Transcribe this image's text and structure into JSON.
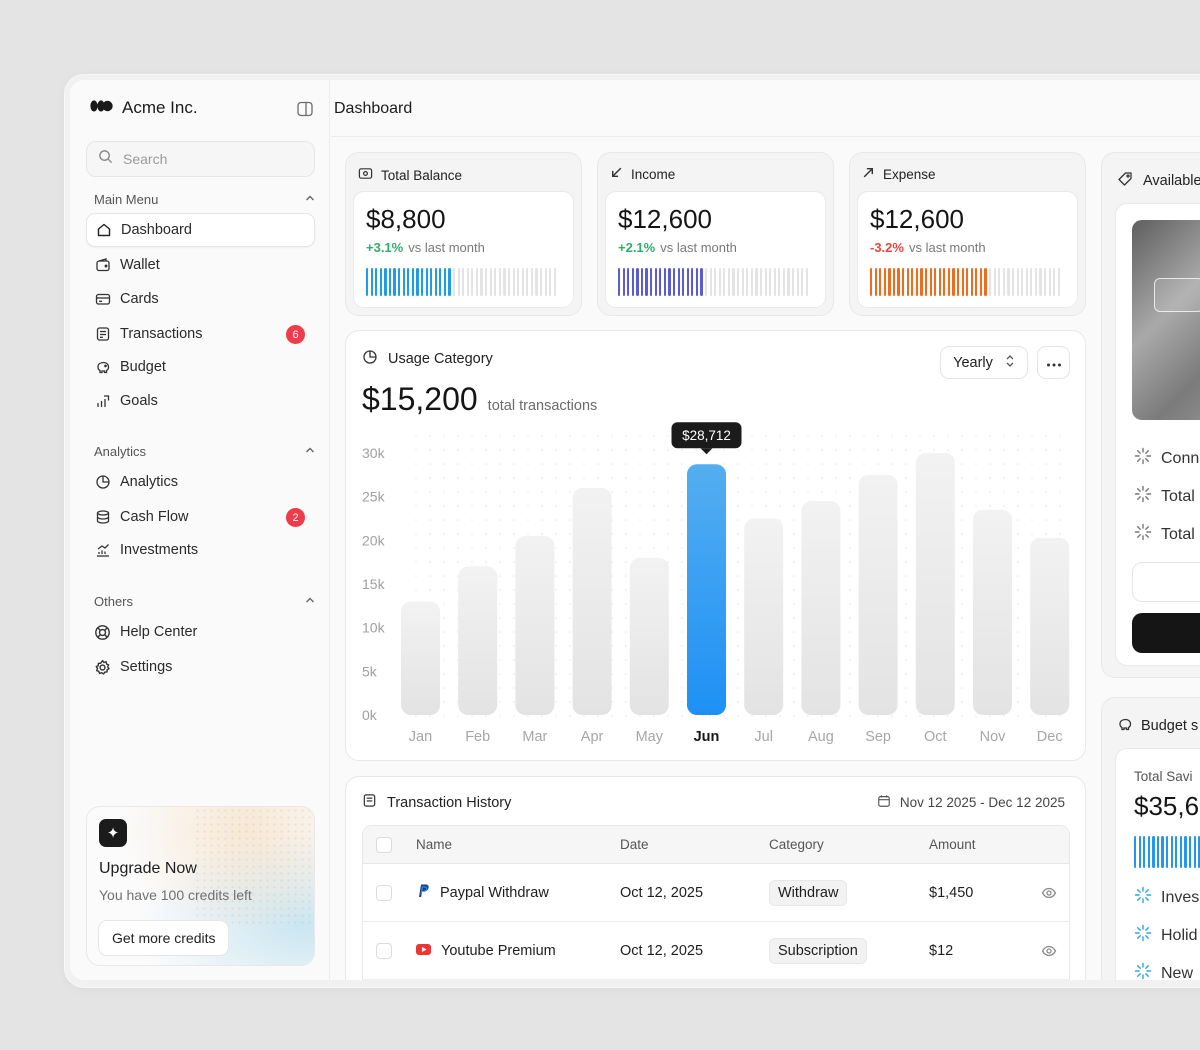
{
  "app": {
    "brand": "Acme Inc."
  },
  "header": {
    "title": "Dashboard"
  },
  "search": {
    "placeholder": "Search"
  },
  "sidebar": {
    "groups": [
      {
        "title": "Main Menu",
        "items": [
          {
            "label": "Dashboard",
            "icon": "home-icon",
            "active": true
          },
          {
            "label": "Wallet",
            "icon": "wallet-icon"
          },
          {
            "label": "Cards",
            "icon": "card-icon"
          },
          {
            "label": "Transactions",
            "icon": "transactions-icon",
            "badge": "6"
          },
          {
            "label": "Budget",
            "icon": "piggy-bank-icon"
          },
          {
            "label": "Goals",
            "icon": "goals-icon"
          }
        ]
      },
      {
        "title": "Analytics",
        "items": [
          {
            "label": "Analytics",
            "icon": "pie-chart-icon"
          },
          {
            "label": "Cash Flow",
            "icon": "cash-flow-icon",
            "badge": "2"
          },
          {
            "label": "Investments",
            "icon": "investments-icon"
          }
        ]
      },
      {
        "title": "Others",
        "items": [
          {
            "label": "Help Center",
            "icon": "help-icon"
          },
          {
            "label": "Settings",
            "icon": "settings-icon"
          }
        ]
      }
    ]
  },
  "upgrade": {
    "title": "Upgrade Now",
    "subtitle": "You have 100 credits left",
    "button": "Get more credits"
  },
  "stats": [
    {
      "title": "Total Balance",
      "icon": "wallet-icon",
      "value": "$8,800",
      "delta": "+3.1%",
      "compare": "vs last month",
      "accent": "#1e9be9",
      "delta_color": "#2fae6a",
      "fill": 0.45
    },
    {
      "title": "Income",
      "icon": "arrow-down-left-icon",
      "value": "$12,600",
      "delta": "+2.1%",
      "compare": "vs last month",
      "accent": "#5b5bd6",
      "delta_color": "#2fae6a",
      "fill": 0.45
    },
    {
      "title": "Expense",
      "icon": "arrow-up-right-icon",
      "value": "$12,600",
      "delta": "-3.2%",
      "compare": "vs last month",
      "accent": "#f26a1b",
      "delta_color": "#e8453c",
      "fill": 0.63
    }
  ],
  "usage": {
    "title": "Usage Category",
    "period": "Yearly",
    "total": "$15,200",
    "total_label": "total transactions"
  },
  "chart_data": {
    "type": "bar",
    "categories": [
      "Jan",
      "Feb",
      "Mar",
      "Apr",
      "May",
      "Jun",
      "Jul",
      "Aug",
      "Sep",
      "Oct",
      "Nov",
      "Dec"
    ],
    "values": [
      13000,
      17000,
      20500,
      26000,
      18000,
      28712,
      22500,
      24500,
      27500,
      30000,
      23500,
      20300
    ],
    "y_ticks": [
      "0k",
      "5k",
      "10k",
      "15k",
      "20k",
      "25k",
      "30k"
    ],
    "ylim": [
      0,
      30000
    ],
    "highlight_index": 5,
    "tooltip": "$28,712",
    "highlight_color": "#1e90f5",
    "grid": "dotted"
  },
  "history": {
    "title": "Transaction History",
    "range": "Nov 12 2025 - Dec 12 2025",
    "columns": [
      "Name",
      "Date",
      "Category",
      "Amount"
    ],
    "rows": [
      {
        "name": "Paypal Withdraw",
        "icon": "paypal-icon",
        "date": "Oct 12, 2025",
        "category": "Withdraw",
        "amount": "$1,450"
      },
      {
        "name": "Youtube Premium",
        "icon": "youtube-icon",
        "date": "Oct 12, 2025",
        "category": "Subscription",
        "amount": "$12"
      }
    ]
  },
  "available": {
    "title": "Available",
    "rows": [
      "Conn",
      "Total",
      "Total"
    ]
  },
  "budget": {
    "title": "Budget s",
    "label": "Total Savi",
    "value": "$35,6",
    "rows": [
      "Inves",
      "Holid",
      "New"
    ]
  }
}
